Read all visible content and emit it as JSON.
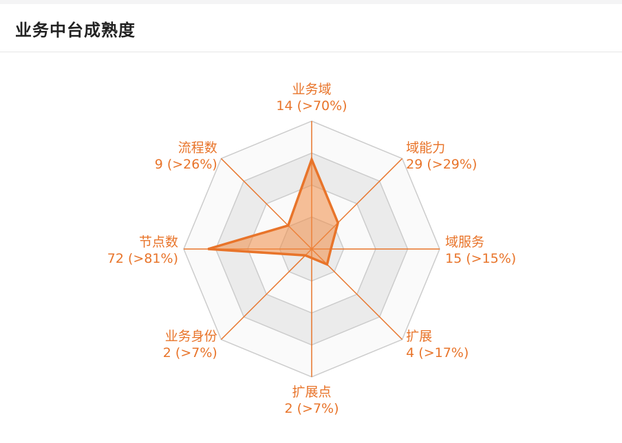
{
  "title": "业务中台成熟度",
  "chart_data": {
    "type": "radar",
    "title": "业务中台成熟度",
    "max": 100,
    "rings": 4,
    "color": "#e8742a",
    "fill": "rgba(240,140,70,0.55)",
    "axes": [
      {
        "name": "业务域",
        "value_label": "14 (>70%)",
        "count": 14,
        "percent": 70
      },
      {
        "name": "域能力",
        "value_label": "29 (>29%)",
        "count": 29,
        "percent": 29
      },
      {
        "name": "域服务",
        "value_label": "15 (>15%)",
        "count": 15,
        "percent": 15
      },
      {
        "name": "扩展",
        "value_label": "4 (>17%)",
        "count": 4,
        "percent": 17
      },
      {
        "name": "扩展点",
        "value_label": "2 (>7%)",
        "count": 2,
        "percent": 7
      },
      {
        "name": "业务身份",
        "value_label": "2 (>7%)",
        "count": 2,
        "percent": 7
      },
      {
        "name": "节点数",
        "value_label": "72 (>81%)",
        "count": 72,
        "percent": 81
      },
      {
        "name": "流程数",
        "value_label": "9 (>26%)",
        "count": 9,
        "percent": 26
      }
    ]
  }
}
